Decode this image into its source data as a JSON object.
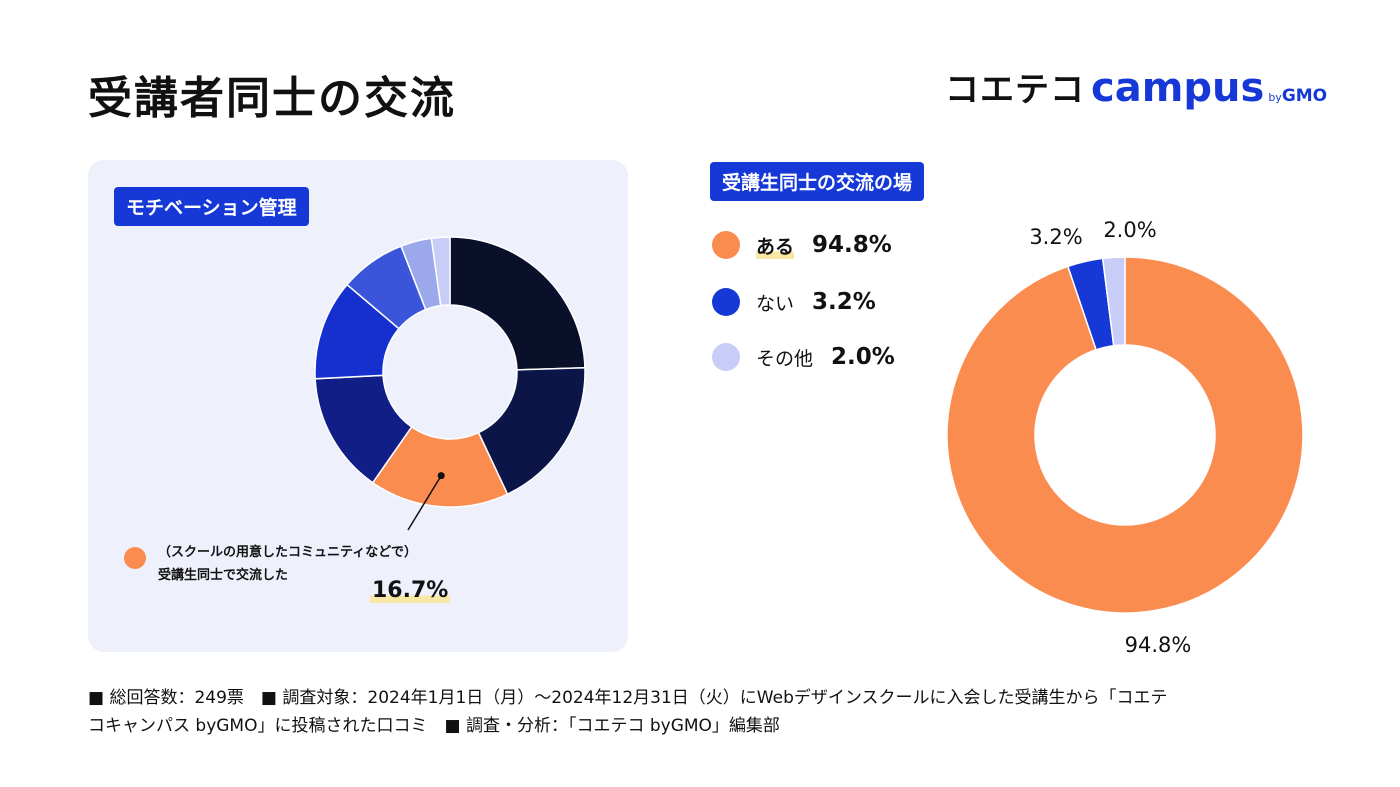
{
  "header": {
    "title": "受講者同士の交流",
    "logo": {
      "main": "コエテコ",
      "campus": "campus",
      "by": "by",
      "gmo": "GMO"
    }
  },
  "colors": {
    "orange": "#fb8c50",
    "blue": "#1638d6",
    "light": "#c7cdf7",
    "panel_bg": "#eef1fb",
    "highlight": "#f9e7a6"
  },
  "chart_data": [
    {
      "type": "pie",
      "subtype": "donut",
      "title": "モチベーション管理",
      "slices": [
        {
          "label": "",
          "value": 24.5,
          "color": "#0a0f2a"
        },
        {
          "label": "",
          "value": 18.5,
          "color": "#0c1548"
        },
        {
          "label": "（スクールの用意したコミュニティなどで）受講生同士で交流した",
          "value": 16.7,
          "color": "#fb8c50"
        },
        {
          "label": "",
          "value": 14.5,
          "color": "#101e86"
        },
        {
          "label": "",
          "value": 12.0,
          "color": "#1530cf"
        },
        {
          "label": "",
          "value": 7.9,
          "color": "#3a55d9"
        },
        {
          "label": "",
          "value": 3.7,
          "color": "#9ba8eb"
        },
        {
          "label": "",
          "value": 2.2,
          "color": "#c7cdf7"
        }
      ],
      "callout": {
        "line1": "（スクールの用意したコミュニティなどで）",
        "line2": "受講生同士で交流した",
        "value": "16.7%"
      }
    },
    {
      "type": "pie",
      "subtype": "donut",
      "title": "受講生同士の交流の場",
      "legend_position": "left",
      "slices": [
        {
          "label": "ある",
          "value": 94.8,
          "display": "94.8%",
          "color": "#fb8c50"
        },
        {
          "label": "ない",
          "value": 3.2,
          "display": "3.2%",
          "color": "#1638d6"
        },
        {
          "label": "その他",
          "value": 2.0,
          "display": "2.0%",
          "color": "#c7cdf7"
        }
      ]
    }
  ],
  "footer": {
    "line1": "■ 総回答数：249票　■ 調査対象：2024年1月1日（月）〜2024年12月31日（火）にWebデザインスクールに入会した受講生から「コエテ",
    "line2": "コキャンパス byGMO」に投稿された口コミ　■ 調査・分析：「コエテコ byGMO」編集部"
  }
}
